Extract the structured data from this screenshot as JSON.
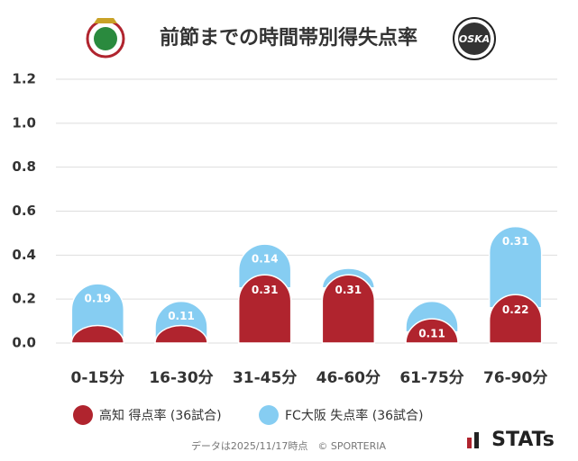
{
  "chart_data": {
    "type": "bar",
    "stacked": true,
    "title": "前節までの時間帯別得失点率",
    "categories": [
      "0-15分",
      "16-30分",
      "31-45分",
      "46-60分",
      "61-75分",
      "76-90分"
    ],
    "series": [
      {
        "name": "高知 得点率 (36試合)",
        "color": "#b0242e",
        "values": [
          0.08,
          0.08,
          0.31,
          0.31,
          0.11,
          0.22
        ]
      },
      {
        "name": "FC大阪 失点率 (36試合)",
        "color": "#86cdf2",
        "values": [
          0.19,
          0.11,
          0.14,
          0.03,
          0.08,
          0.31
        ]
      }
    ],
    "ylim": [
      0,
      1.2
    ],
    "yticks": [
      {
        "value": 0,
        "label": "0.0"
      },
      0.2,
      0.4,
      0.6,
      0.8,
      {
        "value": 1,
        "label": "1.0"
      },
      1.2
    ],
    "grid": true,
    "footer": "データは2025/11/17時点　© SPORTERIA",
    "brand": "STATs"
  }
}
